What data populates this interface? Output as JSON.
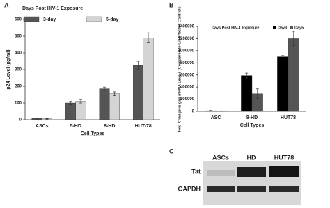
{
  "chart_data": [
    {
      "type": "bar",
      "label": "A",
      "legend_title": "Days Post HIV-1 Exposure",
      "ylabel": "p24 Level (pg/ml)",
      "xlabel": "Cell Types",
      "xlabel_underline": true,
      "categories": [
        "ASCs",
        "5-HD",
        "8-HD",
        "HUT-78"
      ],
      "series": [
        {
          "name": "3-day",
          "color": "#555555",
          "values": [
            8,
            100,
            185,
            325
          ],
          "errors": [
            3,
            10,
            10,
            25
          ]
        },
        {
          "name": "5-day",
          "color": "#d4d4d4",
          "values": [
            5,
            110,
            155,
            490
          ],
          "errors": [
            2,
            10,
            12,
            30
          ]
        }
      ],
      "ylim": [
        0,
        600
      ],
      "yticks": [
        0,
        100,
        200,
        300,
        400,
        500,
        600
      ],
      "legend": "top"
    },
    {
      "type": "bar",
      "label": "B",
      "legend_title": "Days Post HIV-1 Exposure",
      "ylabel": "Fold Change in gag mRNA Levels (Compared to Un-infected Controls)",
      "xlabel": "Cell Types",
      "xlabel_underline": false,
      "categories": [
        "ASC",
        "8-HD",
        "HUT78"
      ],
      "series": [
        {
          "name": "Day3",
          "color": "#000000",
          "values": [
            10000,
            590000,
            900000
          ],
          "errors": [
            5000,
            40000,
            20000
          ]
        },
        {
          "name": "Day5",
          "color": "#555555",
          "values": [
            5000,
            290000,
            1200000
          ],
          "errors": [
            3000,
            80000,
            120000
          ]
        }
      ],
      "ylim": [
        0,
        1400000
      ],
      "yticks": [
        0,
        200000,
        400000,
        600000,
        800000,
        1000000,
        1200000,
        1400000
      ],
      "legend": "inline"
    }
  ],
  "blot": {
    "label": "C",
    "columns": [
      "ASCs",
      "HD",
      "HUT78"
    ],
    "rows": [
      "Tat",
      "GAPDH"
    ]
  }
}
